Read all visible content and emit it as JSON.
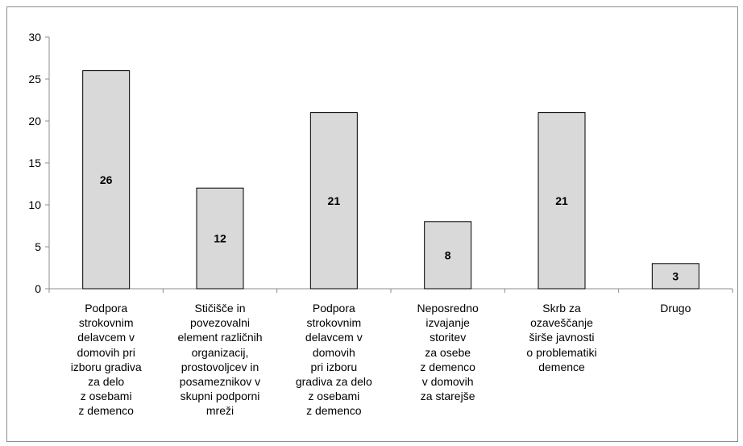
{
  "chart_data": {
    "type": "bar",
    "title": "",
    "xlabel": "",
    "ylabel": "",
    "ylim": [
      0,
      30
    ],
    "yticks": [
      0,
      5,
      10,
      15,
      20,
      25,
      30
    ],
    "grid": false,
    "legend": "none",
    "bar_color": "#d9d9d9",
    "bar_outline": "#000000",
    "categories": [
      "Podpora\nstrokovnim\ndelavcem v\ndomovih pri\nizboru gradiva\nza delo\nz osebami\nz demenco",
      "Stičišče in\npovezovalni\nelement različnih\norganizacij,\nprostovoljcev in\nposameznikov v\nskupni podporni\nmreži",
      "Podpora\nstrokovnim\ndelavcem v\ndomovih\npri izboru\ngradiva za delo\nz osebami\nz demenco",
      "Neposredno\nizvajanje\nstoritev\nza osebe\nz demenco\nv domovih\nza starejše",
      "Skrb za\nozaveščanje\nširše javnosti\no problematiki\ndemence",
      "Drugo"
    ],
    "values": [
      26,
      12,
      21,
      8,
      21,
      3
    ],
    "data_labels": [
      "26",
      "12",
      "21",
      "8",
      "21",
      "3"
    ]
  }
}
